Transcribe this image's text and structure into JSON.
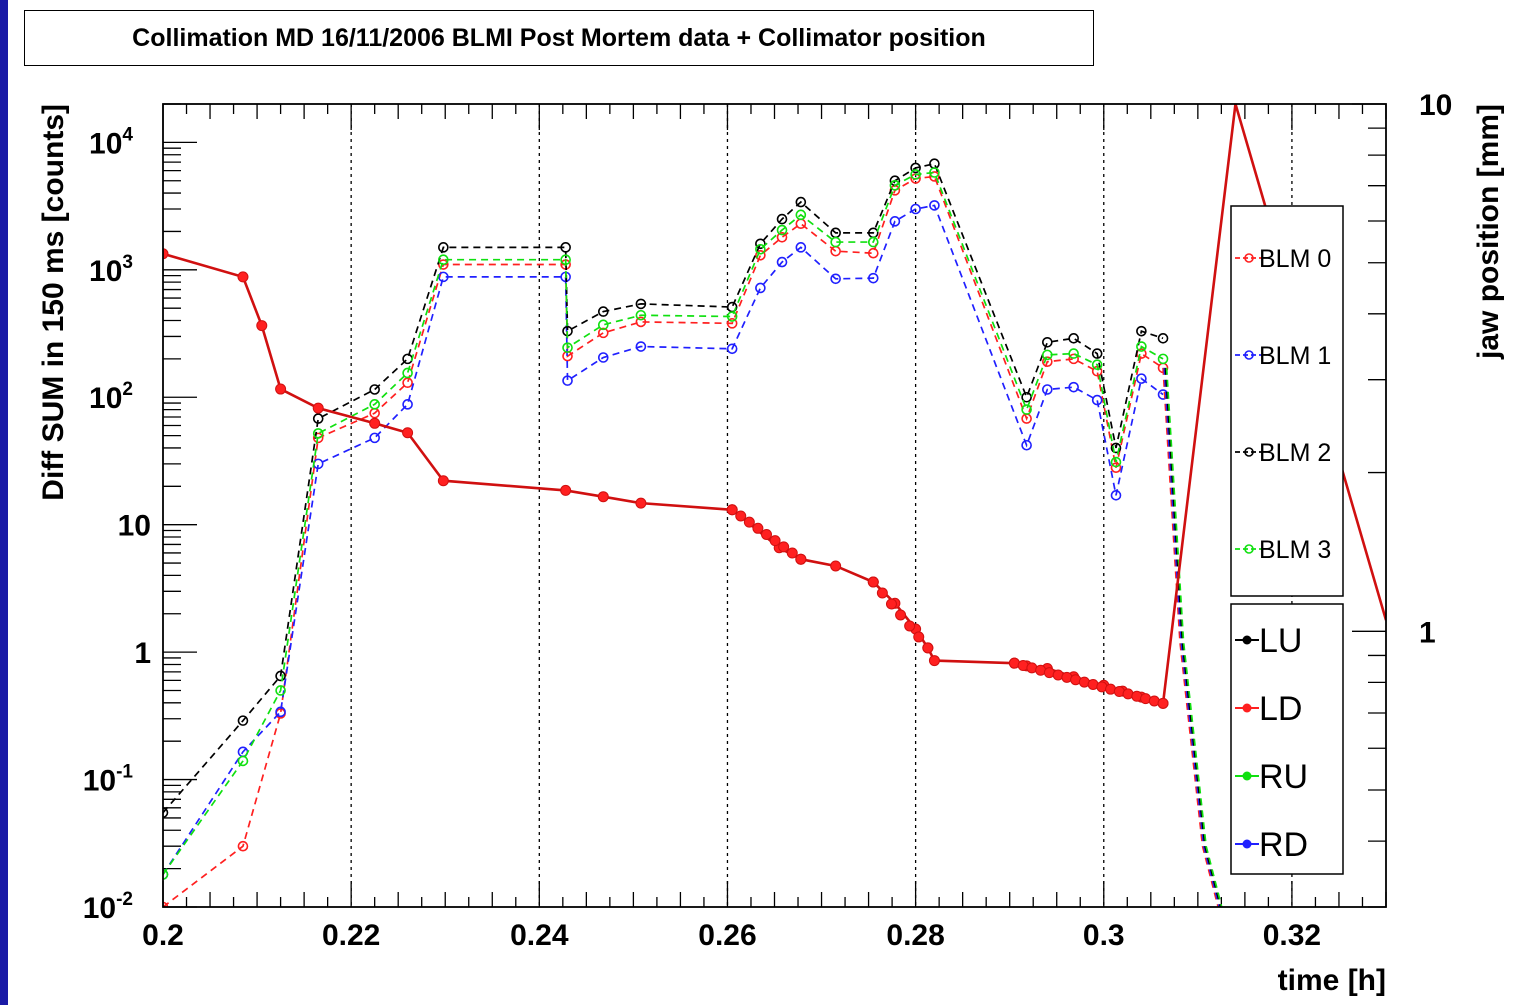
{
  "chart_data": {
    "type": "line",
    "title": "Collimation MD 16/11/2006 BLMI Post Mortem data + Collimator position",
    "xlabel": "time [h]",
    "ylabel": "Diff SUM in 150 ms [counts]",
    "y2label": "jaw position [mm]",
    "xlim": [
      0.2,
      0.33
    ],
    "ylim": [
      0.01,
      20000
    ],
    "y_scale": "log",
    "y2lim": [
      0.3,
      10
    ],
    "y2_scale": "log",
    "x_ticks": [
      "0.2",
      "0.22",
      "0.24",
      "0.26",
      "0.28",
      "0.3",
      "0.32"
    ],
    "y_ticks": [
      {
        "base": "10",
        "exp": "-2"
      },
      {
        "base": "10",
        "exp": "-1"
      },
      {
        "base": "1",
        "exp": ""
      },
      {
        "base": "10",
        "exp": ""
      },
      {
        "base": "10",
        "exp": "2"
      },
      {
        "base": "10",
        "exp": "3"
      },
      {
        "base": "10",
        "exp": "4"
      }
    ],
    "y2_ticks": [
      "10",
      "1"
    ],
    "grid": "x-dotted",
    "legend_blm": [
      {
        "name": "BLM 0",
        "color": "#ff2020"
      },
      {
        "name": "BLM 1",
        "color": "#2020ff"
      },
      {
        "name": "BLM 2",
        "color": "#000000"
      },
      {
        "name": "BLM 3",
        "color": "#10e010"
      }
    ],
    "legend_jaw": [
      {
        "name": "LU",
        "color": "#000000"
      },
      {
        "name": "LD",
        "color": "#ff2020"
      },
      {
        "name": "RU",
        "color": "#10e010"
      },
      {
        "name": "RD",
        "color": "#2020ff"
      }
    ],
    "x": [
      0.2,
      0.2085,
      0.2125,
      0.2165,
      0.2225,
      0.226,
      0.2298,
      0.2428,
      0.243,
      0.2468,
      0.2508,
      0.2605,
      0.2635,
      0.2658,
      0.2678,
      0.2715,
      0.2755,
      0.2778,
      0.28,
      0.282,
      0.2918,
      0.294,
      0.2968,
      0.2993,
      0.3013,
      0.304,
      0.3063
    ],
    "series": [
      {
        "name": "BLM 0",
        "color": "#ff2020",
        "values": [
          0.01,
          0.03,
          0.33,
          48,
          75,
          130,
          1100,
          1100,
          210,
          320,
          390,
          380,
          1300,
          1800,
          2300,
          1400,
          1350,
          4200,
          5200,
          5400,
          68,
          190,
          200,
          160,
          28,
          220,
          170
        ]
      },
      {
        "name": "BLM 1",
        "color": "#2020ff",
        "values": [
          0.018,
          0.165,
          0.34,
          30,
          48,
          88,
          880,
          880,
          135,
          205,
          250,
          240,
          720,
          1150,
          1500,
          850,
          860,
          2400,
          3000,
          3200,
          42,
          115,
          120,
          95,
          17,
          140,
          105
        ]
      },
      {
        "name": "BLM 2",
        "color": "#000000",
        "values": [
          0.055,
          0.29,
          0.65,
          68,
          115,
          200,
          1500,
          1500,
          330,
          470,
          540,
          510,
          1600,
          2500,
          3400,
          1950,
          1950,
          5000,
          6300,
          6800,
          100,
          270,
          290,
          220,
          40,
          330,
          290
        ]
      },
      {
        "name": "BLM 3",
        "color": "#10e010",
        "values": [
          0.018,
          0.14,
          0.5,
          52,
          88,
          155,
          1200,
          1200,
          245,
          370,
          440,
          430,
          1450,
          2050,
          2700,
          1650,
          1650,
          4600,
          5600,
          5800,
          80,
          215,
          220,
          180,
          31,
          250,
          200
        ]
      }
    ],
    "jaw": {
      "name": "LD",
      "color": "#d01010",
      "x": [
        0.2,
        0.2085,
        0.2105,
        0.2125,
        0.2165,
        0.2225,
        0.226,
        0.2298,
        0.2428,
        0.2468,
        0.2508,
        0.2605,
        0.2655,
        0.2678,
        0.2715,
        0.2755,
        0.2778,
        0.28,
        0.2813,
        0.282,
        0.2905,
        0.2918,
        0.294,
        0.2968,
        0.3,
        0.302,
        0.304,
        0.3063,
        0.314,
        0.33
      ],
      "values": [
        5.2,
        4.7,
        3.8,
        2.88,
        2.65,
        2.48,
        2.38,
        1.93,
        1.85,
        1.8,
        1.75,
        1.7,
        1.44,
        1.37,
        1.33,
        1.24,
        1.13,
        1.01,
        0.93,
        0.88,
        0.87,
        0.86,
        0.85,
        0.82,
        0.79,
        0.77,
        0.75,
        0.73,
        10,
        1.05
      ]
    },
    "drop": {
      "x": [
        0.3063,
        0.3081,
        0.3105,
        0.3132
      ],
      "values": [
        170,
        1.2,
        0.03,
        0.005
      ]
    }
  }
}
